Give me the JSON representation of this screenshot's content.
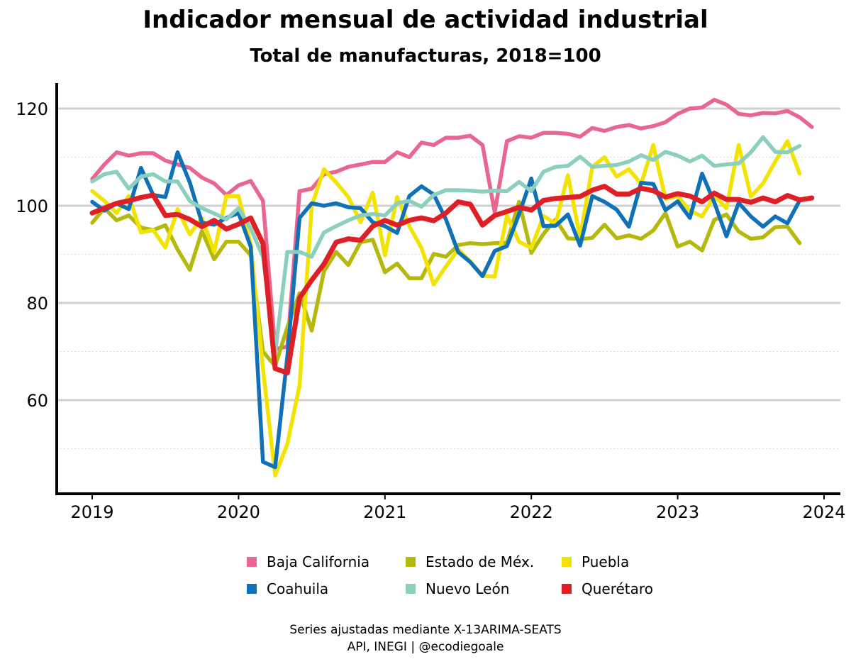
{
  "title": "Indicador mensual de actividad industrial",
  "subtitle": "Total de manufacturas, 2018=100",
  "footer": {
    "line1": "Series ajustadas mediante X-13ARIMA-SEATS",
    "line2": "API, INEGI | @ecodiegoale"
  },
  "chart_data": {
    "type": "line",
    "title": "Indicador mensual de actividad industrial",
    "subtitle": "Total de manufacturas, 2018=100",
    "xlabel": "",
    "ylabel": "",
    "xlim": [
      2018.95,
      2024.0
    ],
    "ylim": [
      43,
      125
    ],
    "x_ticks": [
      2019,
      2020,
      2021,
      2022,
      2023,
      2024
    ],
    "y_ticks": [
      60,
      80,
      100,
      120
    ],
    "grid": true,
    "legend_position": "bottom",
    "x_start": "2019-01",
    "x_step": "monthly",
    "series": [
      {
        "name": "Baja California",
        "color": "#e8668f",
        "values": [
          105.5,
          108.5,
          111,
          110.3,
          110.8,
          110.8,
          109.3,
          108.5,
          107.8,
          105.8,
          104.6,
          102.2,
          104.2,
          105.1,
          101,
          70.5,
          71,
          103,
          103.5,
          106.5,
          107,
          108,
          108.5,
          109,
          109,
          111,
          110,
          113,
          112.5,
          114,
          114,
          114.4,
          112.5,
          98.6,
          113.3,
          114.3,
          114,
          115,
          115,
          114.8,
          114.2,
          116,
          115.4,
          116.2,
          116.6,
          115.9,
          116.4,
          117.2,
          118.9,
          120,
          120.2,
          121.8,
          120.8,
          118.9,
          118.6,
          119.1,
          119,
          119.5,
          118.2,
          116.2
        ]
      },
      {
        "name": "Estado de Méx.",
        "color": "#b5b90d",
        "values": [
          96.5,
          99.5,
          97,
          98,
          95.5,
          95,
          96,
          91,
          86.8,
          94.8,
          89,
          92.6,
          92.6,
          89.8,
          70,
          67,
          75,
          82,
          74.3,
          86.5,
          90.5,
          87.8,
          92.5,
          93,
          86.3,
          88.1,
          85.1,
          85.1,
          90.1,
          89.5,
          91.9,
          92.3,
          92.1,
          92.3,
          92.4,
          100.8,
          90.3,
          94.2,
          97.2,
          93.3,
          93.1,
          93.4,
          96.1,
          93.3,
          93.9,
          93.2,
          94.9,
          98.5,
          91.6,
          92.6,
          90.8,
          97.1,
          98.2,
          94.7,
          93.2,
          93.5,
          95.6,
          95.7,
          92.3
        ]
      },
      {
        "name": "Puebla",
        "color": "#f2e300",
        "values": [
          103,
          101,
          98.5,
          102,
          94.5,
          95,
          91.4,
          99.3,
          94.1,
          97.5,
          90.5,
          102,
          102,
          92,
          66.5,
          44.5,
          51,
          63,
          100,
          107.5,
          104.8,
          101.8,
          96.6,
          102.7,
          89.8,
          101.8,
          95.8,
          91.3,
          83.8,
          87.5,
          91,
          88.5,
          85.6,
          85.4,
          98,
          92.6,
          91.3,
          97.9,
          96.3,
          106.3,
          93.4,
          108,
          110,
          106,
          107.5,
          104.5,
          112.5,
          101.4,
          102,
          99,
          97.8,
          102,
          99.5,
          112.5,
          101.9,
          104.6,
          109.1,
          113.3,
          106.6
        ]
      },
      {
        "name": "Coahuila",
        "color": "#0f71b8",
        "values": [
          100.8,
          99,
          100.5,
          99.3,
          107.8,
          102.2,
          101.8,
          111,
          104.8,
          96.5,
          96.1,
          97.5,
          98.5,
          91.5,
          47.3,
          46.2,
          69,
          97.5,
          100.5,
          100,
          100.5,
          99.7,
          99.5,
          96.6,
          95.8,
          94.4,
          102,
          104,
          102.3,
          97.2,
          90.5,
          88.4,
          85.5,
          90.7,
          91.7,
          98.3,
          105.6,
          95.8,
          95.9,
          98.2,
          91.8,
          102,
          100.8,
          99.2,
          95.7,
          104.7,
          104.5,
          99.1,
          100.9,
          97.5,
          106.6,
          100.7,
          93.7,
          100.6,
          97.8,
          95.7,
          97.8,
          96.4,
          101.1
        ]
      },
      {
        "name": "Nuevo León",
        "color": "#8ccfbf",
        "values": [
          105,
          106.5,
          107,
          103.5,
          106,
          106.5,
          105,
          105,
          101,
          99.5,
          98.4,
          97.2,
          99.5,
          95.3,
          89.5,
          69.7,
          90.5,
          90.5,
          89.5,
          94.5,
          95.8,
          97,
          98,
          98.3,
          98,
          100.5,
          101,
          99.8,
          102.2,
          103.2,
          103.2,
          103.1,
          102.9,
          103.1,
          103,
          104.9,
          103,
          107,
          108,
          108.2,
          110.1,
          108,
          108.2,
          108.4,
          109.1,
          110.4,
          109.4,
          111.1,
          110.3,
          109.1,
          110.3,
          108.2,
          108.5,
          108.7,
          111,
          114.1,
          111.1,
          111,
          112.3
        ]
      },
      {
        "name": "Querétaro",
        "color": "#df1f26",
        "values": [
          98.5,
          99.5,
          100.5,
          101,
          101.7,
          102.2,
          98,
          98.2,
          97.2,
          95.7,
          97,
          95.2,
          96.2,
          97.5,
          92.2,
          66.5,
          65.6,
          81,
          84.7,
          88,
          92.5,
          93.2,
          92.9,
          95.8,
          97,
          96,
          97,
          97.5,
          96.9,
          98.5,
          100.8,
          100.3,
          96,
          98,
          98.8,
          99.7,
          99.1,
          101.1,
          101.5,
          101.7,
          101.9,
          103.2,
          104,
          102.4,
          102.4,
          103.6,
          103.1,
          101.8,
          102.5,
          102,
          100.8,
          102.6,
          101.3,
          101.3,
          100.7,
          101.6,
          100.8,
          102.1,
          101.2,
          101.6
        ]
      }
    ]
  }
}
